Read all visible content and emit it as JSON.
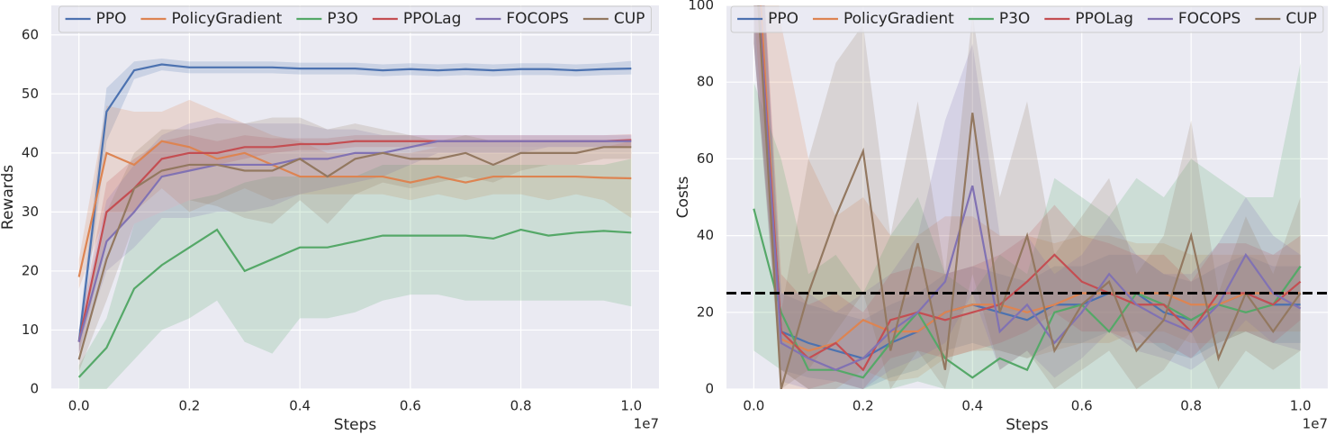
{
  "chart_data": [
    {
      "type": "line",
      "ylabel": "Rewards",
      "xlabel": "Steps",
      "x_offset_label": "1e7",
      "x": [
        0,
        0.05,
        0.1,
        0.15,
        0.2,
        0.25,
        0.3,
        0.35,
        0.4,
        0.45,
        0.5,
        0.55,
        0.6,
        0.65,
        0.7,
        0.75,
        0.8,
        0.85,
        0.9,
        0.95,
        1.0
      ],
      "xlim": [
        -0.05,
        1.05
      ],
      "xticks": [
        {
          "value": 0,
          "label": "0.0"
        },
        0.2,
        0.4,
        0.6,
        0.8,
        {
          "value": 1,
          "label": "1.0"
        }
      ],
      "ylim": [
        0,
        65
      ],
      "yticks": [
        0,
        10,
        20,
        30,
        40,
        50,
        60
      ],
      "grid": true,
      "legend": "upper center",
      "series": [
        {
          "name": "PPO",
          "color": "#4c72b0",
          "values": [
            8,
            47,
            54,
            55,
            54.5,
            54.5,
            54.5,
            54.5,
            54.3,
            54.3,
            54.3,
            54,
            54.2,
            54,
            54.2,
            54,
            54.2,
            54.2,
            54,
            54.2,
            54.3
          ],
          "lower": [
            6,
            42,
            52.5,
            54,
            53.5,
            53.5,
            53.5,
            53.5,
            53.3,
            53.3,
            53.3,
            53,
            53.2,
            53,
            53.2,
            53,
            53.2,
            53.2,
            53,
            53.2,
            53.3
          ],
          "upper": [
            10,
            51,
            55.5,
            56,
            55.5,
            55.5,
            55.5,
            55.5,
            55.3,
            55.3,
            55.3,
            55,
            55.2,
            55,
            55.2,
            55,
            55.2,
            55.2,
            55,
            55.2,
            55.6
          ]
        },
        {
          "name": "PolicyGradient",
          "color": "#dd8452",
          "values": [
            19,
            40,
            38,
            42,
            41,
            39,
            40,
            38,
            36,
            36,
            36,
            36,
            35,
            36,
            35,
            36,
            36,
            36,
            36,
            35.8,
            35.7
          ],
          "lower": [
            17,
            30,
            30,
            34,
            30,
            32,
            34,
            32,
            33,
            33,
            33,
            33,
            32,
            33,
            32,
            33,
            33,
            32,
            33,
            32,
            29
          ],
          "upper": [
            22,
            48,
            47,
            47,
            49,
            47,
            45,
            43,
            42,
            40,
            40,
            40,
            40,
            41,
            41,
            41,
            41,
            41,
            41,
            41,
            42
          ]
        },
        {
          "name": "P3O",
          "color": "#55a868",
          "values": [
            2,
            7,
            17,
            21,
            24,
            27,
            20,
            22,
            24,
            24,
            25,
            26,
            26,
            26,
            26,
            25.5,
            27,
            26,
            26.5,
            26.8,
            26.5
          ],
          "lower": [
            0,
            0,
            5,
            10,
            12,
            15,
            8,
            6,
            12,
            12,
            13,
            15,
            16,
            16,
            15,
            15,
            15,
            15,
            15,
            15,
            14
          ],
          "upper": [
            4,
            12,
            28,
            30,
            32,
            33,
            35,
            36,
            36,
            36,
            36,
            38,
            38,
            38,
            38,
            38,
            38,
            38,
            38,
            38,
            39
          ]
        },
        {
          "name": "PPOLag",
          "color": "#c44e52",
          "values": [
            8,
            30,
            34,
            39,
            40,
            40,
            41,
            41,
            41.5,
            41.5,
            42,
            42,
            42,
            42,
            42,
            42,
            42,
            42,
            42,
            42,
            42.2
          ],
          "lower": [
            6,
            25,
            30,
            36,
            37,
            38,
            39,
            40,
            40.5,
            40.5,
            41,
            41,
            41,
            41,
            41,
            41,
            41,
            41,
            41,
            41,
            41.2
          ],
          "upper": [
            10,
            35,
            39,
            42,
            43,
            42,
            43,
            42.5,
            42.5,
            42.5,
            43,
            43,
            43,
            43,
            43,
            43,
            43,
            43,
            43,
            43,
            43.2
          ]
        },
        {
          "name": "FOCOPS",
          "color": "#8172b3",
          "values": [
            8,
            25,
            30,
            36,
            37,
            38,
            38,
            38,
            39,
            39,
            40,
            40,
            41,
            42,
            42,
            42,
            42,
            42,
            42,
            42,
            42
          ],
          "lower": [
            6,
            20,
            24,
            29,
            29,
            30,
            30,
            31,
            33,
            34,
            35,
            36,
            38,
            40,
            40,
            40,
            40,
            41,
            41,
            41,
            41
          ],
          "upper": [
            10,
            32,
            38,
            43,
            45,
            46,
            45,
            45,
            45,
            44,
            44,
            43,
            43,
            43,
            43,
            43,
            43,
            43,
            43,
            43,
            43
          ]
        },
        {
          "name": "CUP",
          "color": "#937860",
          "values": [
            5,
            22,
            34,
            37,
            38,
            38,
            37,
            37,
            39,
            36,
            39,
            40,
            39,
            39,
            40,
            38,
            40,
            40,
            40,
            41,
            41
          ],
          "lower": [
            3,
            15,
            28,
            30,
            32,
            31,
            29,
            28,
            32,
            28,
            33,
            35,
            34,
            35,
            36,
            35,
            37,
            38,
            38,
            39,
            39
          ],
          "upper": [
            8,
            30,
            40,
            44,
            44,
            45,
            45,
            46,
            46,
            44,
            45,
            44,
            43,
            42,
            43,
            42,
            42,
            42,
            42,
            42,
            42
          ]
        }
      ]
    },
    {
      "type": "line",
      "ylabel": "Costs",
      "xlabel": "Steps",
      "x_offset_label": "1e7",
      "x": [
        0,
        0.05,
        0.1,
        0.15,
        0.2,
        0.25,
        0.3,
        0.35,
        0.4,
        0.45,
        0.5,
        0.55,
        0.6,
        0.65,
        0.7,
        0.75,
        0.8,
        0.85,
        0.9,
        0.95,
        1.0
      ],
      "xlim": [
        -0.05,
        1.05
      ],
      "xticks": [
        {
          "value": 0,
          "label": "0.0"
        },
        0.2,
        0.4,
        0.6,
        0.8,
        {
          "value": 1,
          "label": "1.0"
        }
      ],
      "ylim": [
        0,
        100
      ],
      "yticks": [
        0,
        20,
        40,
        60,
        80,
        100
      ],
      "grid": true,
      "legend": "upper center",
      "hline": {
        "value": 25,
        "color": "#000000",
        "style": "dashed"
      },
      "series": [
        {
          "name": "PPO",
          "color": "#4c72b0",
          "values": [
            120,
            15,
            12,
            10,
            8,
            12,
            15,
            20,
            22,
            20,
            18,
            22,
            22,
            25,
            25,
            20,
            18,
            22,
            25,
            22,
            22
          ],
          "lower": [
            90,
            5,
            3,
            2,
            0,
            3,
            5,
            10,
            12,
            10,
            8,
            12,
            12,
            15,
            15,
            10,
            8,
            12,
            15,
            12,
            12
          ],
          "upper": [
            150,
            25,
            22,
            20,
            18,
            22,
            25,
            30,
            32,
            30,
            28,
            32,
            32,
            35,
            35,
            30,
            28,
            32,
            35,
            32,
            32
          ]
        },
        {
          "name": "PolicyGradient",
          "color": "#dd8452",
          "values": [
            130,
            13,
            10,
            12,
            18,
            15,
            15,
            20,
            22,
            22,
            20,
            22,
            25,
            25,
            25,
            25,
            22,
            22,
            25,
            25,
            25
          ],
          "lower": [
            100,
            0,
            0,
            0,
            5,
            2,
            3,
            8,
            10,
            10,
            8,
            10,
            12,
            12,
            15,
            15,
            12,
            12,
            15,
            15,
            15
          ],
          "upper": [
            160,
            95,
            60,
            45,
            50,
            40,
            40,
            45,
            45,
            40,
            40,
            38,
            40,
            40,
            38,
            38,
            35,
            35,
            35,
            35,
            35
          ]
        },
        {
          "name": "P3O",
          "color": "#55a868",
          "values": [
            47,
            20,
            5,
            5,
            3,
            12,
            20,
            8,
            3,
            8,
            5,
            20,
            22,
            15,
            25,
            22,
            18,
            22,
            20,
            22,
            32
          ],
          "lower": [
            10,
            5,
            0,
            0,
            0,
            0,
            2,
            0,
            0,
            0,
            0,
            0,
            0,
            0,
            0,
            0,
            0,
            0,
            0,
            0,
            0
          ],
          "upper": [
            80,
            60,
            30,
            35,
            25,
            40,
            50,
            30,
            25,
            35,
            30,
            55,
            50,
            45,
            55,
            50,
            60,
            55,
            50,
            50,
            85
          ]
        },
        {
          "name": "PPOLag",
          "color": "#c44e52",
          "values": [
            120,
            15,
            8,
            12,
            5,
            18,
            20,
            18,
            20,
            22,
            28,
            35,
            28,
            25,
            22,
            22,
            15,
            25,
            25,
            22,
            28
          ],
          "lower": [
            90,
            5,
            0,
            2,
            0,
            8,
            10,
            8,
            10,
            12,
            15,
            20,
            15,
            15,
            12,
            12,
            8,
            15,
            15,
            12,
            18
          ],
          "upper": [
            150,
            30,
            22,
            25,
            20,
            30,
            32,
            30,
            32,
            35,
            40,
            48,
            40,
            38,
            35,
            35,
            28,
            38,
            38,
            35,
            40
          ]
        },
        {
          "name": "FOCOPS",
          "color": "#8172b3",
          "values": [
            120,
            12,
            8,
            5,
            8,
            15,
            20,
            28,
            53,
            15,
            22,
            12,
            20,
            30,
            22,
            18,
            15,
            22,
            35,
            25,
            21
          ],
          "lower": [
            90,
            2,
            0,
            0,
            0,
            5,
            8,
            12,
            25,
            5,
            10,
            3,
            8,
            15,
            10,
            8,
            5,
            10,
            18,
            12,
            10
          ],
          "upper": [
            150,
            25,
            25,
            20,
            25,
            30,
            40,
            70,
            90,
            40,
            40,
            30,
            35,
            45,
            35,
            30,
            30,
            38,
            50,
            40,
            35
          ]
        },
        {
          "name": "CUP",
          "color": "#937860",
          "values": [
            120,
            0,
            25,
            45,
            62,
            10,
            38,
            5,
            72,
            20,
            40,
            10,
            22,
            28,
            10,
            18,
            40,
            8,
            25,
            15,
            25
          ],
          "lower": [
            90,
            0,
            5,
            15,
            25,
            0,
            10,
            0,
            30,
            5,
            10,
            0,
            5,
            10,
            0,
            5,
            15,
            0,
            10,
            5,
            10
          ],
          "upper": [
            150,
            20,
            60,
            85,
            95,
            40,
            75,
            30,
            98,
            50,
            75,
            35,
            45,
            55,
            30,
            40,
            70,
            25,
            45,
            30,
            50
          ]
        }
      ]
    }
  ]
}
